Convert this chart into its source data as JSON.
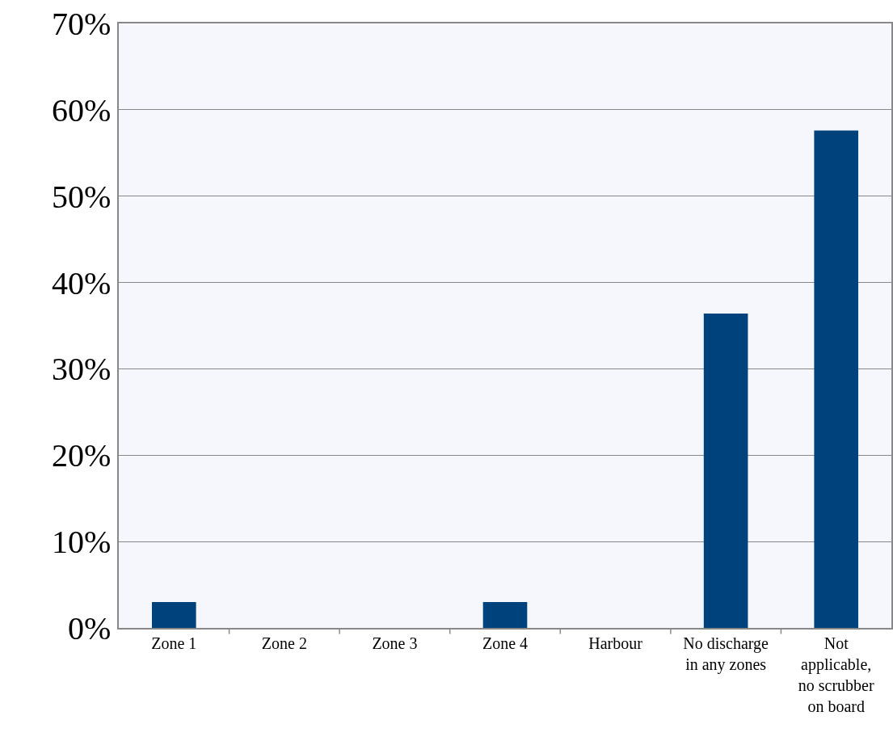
{
  "chart_data": {
    "type": "bar",
    "categories": [
      "Zone 1",
      "Zone 2",
      "Zone 3",
      "Zone 4",
      "Harbour",
      "No discharge in any zones",
      "Not applicable, no scrubber on board"
    ],
    "values": [
      3,
      0,
      0,
      3,
      0,
      36.4,
      57.6
    ],
    "color": "#00437c",
    "ylim": [
      0,
      70
    ],
    "yticks": [
      {
        "value": 0,
        "label": "0%"
      },
      {
        "value": 10,
        "label": "10%"
      },
      {
        "value": 20,
        "label": "20%"
      },
      {
        "value": 30,
        "label": "30%"
      },
      {
        "value": 40,
        "label": "40%"
      },
      {
        "value": 50,
        "label": "50%"
      },
      {
        "value": 60,
        "label": "60%"
      },
      {
        "value": 70,
        "label": "70%"
      }
    ],
    "grid": "y",
    "legend": false
  }
}
